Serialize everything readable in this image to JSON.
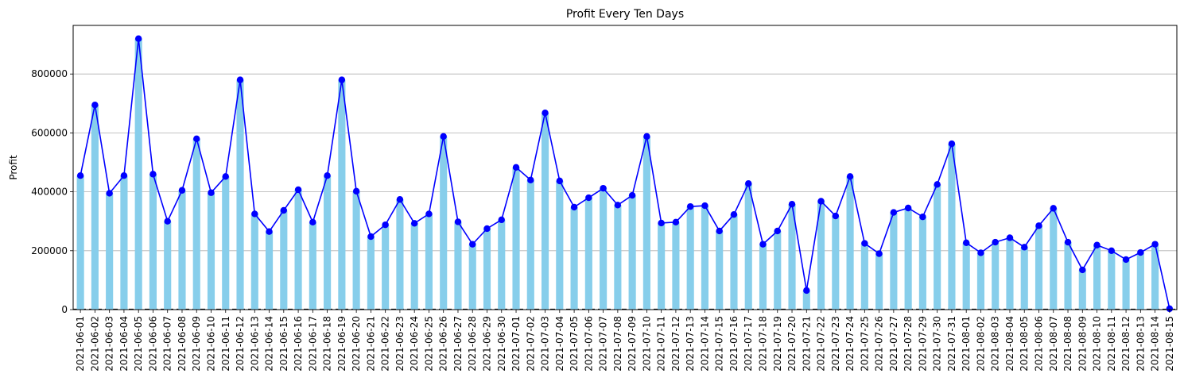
{
  "chart_data": {
    "type": "bar",
    "title": "Profit Every Ten Days",
    "xlabel": "",
    "ylabel": "Profit",
    "ylim": [
      0,
      965000
    ],
    "yticks": [
      0,
      200000,
      400000,
      600000,
      800000
    ],
    "ytick_labels": [
      "0",
      "200000",
      "400000",
      "600000",
      "800000"
    ],
    "grid": "y",
    "colors": {
      "bar": "#87ceeb",
      "line": "#0000ff",
      "grid": "#b0b0b0",
      "zero_line": "#000000"
    },
    "categories": [
      "2021-06-01",
      "2021-06-02",
      "2021-06-03",
      "2021-06-04",
      "2021-06-05",
      "2021-06-06",
      "2021-06-07",
      "2021-06-08",
      "2021-06-09",
      "2021-06-10",
      "2021-06-11",
      "2021-06-12",
      "2021-06-13",
      "2021-06-14",
      "2021-06-15",
      "2021-06-16",
      "2021-06-17",
      "2021-06-18",
      "2021-06-19",
      "2021-06-20",
      "2021-06-21",
      "2021-06-22",
      "2021-06-23",
      "2021-06-24",
      "2021-06-25",
      "2021-06-26",
      "2021-06-27",
      "2021-06-28",
      "2021-06-29",
      "2021-06-30",
      "2021-07-01",
      "2021-07-02",
      "2021-07-03",
      "2021-07-04",
      "2021-07-05",
      "2021-07-06",
      "2021-07-07",
      "2021-07-08",
      "2021-07-09",
      "2021-07-10",
      "2021-07-11",
      "2021-07-12",
      "2021-07-13",
      "2021-07-14",
      "2021-07-15",
      "2021-07-16",
      "2021-07-17",
      "2021-07-18",
      "2021-07-19",
      "2021-07-20",
      "2021-07-21",
      "2021-07-22",
      "2021-07-23",
      "2021-07-24",
      "2021-07-25",
      "2021-07-26",
      "2021-07-27",
      "2021-07-28",
      "2021-07-29",
      "2021-07-30",
      "2021-07-31",
      "2021-08-01",
      "2021-08-02",
      "2021-08-03",
      "2021-08-04",
      "2021-08-05",
      "2021-08-06",
      "2021-08-07",
      "2021-08-08",
      "2021-08-09",
      "2021-08-10",
      "2021-08-11",
      "2021-08-12",
      "2021-08-13",
      "2021-08-14",
      "2021-08-15"
    ],
    "values": [
      455000,
      695000,
      395000,
      455000,
      920000,
      460000,
      300000,
      405000,
      580000,
      397000,
      452000,
      780000,
      325000,
      265000,
      337000,
      407000,
      297000,
      455000,
      780000,
      402000,
      248000,
      288000,
      374000,
      293000,
      325000,
      588000,
      298000,
      222000,
      275000,
      305000,
      483000,
      440000,
      668000,
      437000,
      348000,
      380000,
      412000,
      355000,
      388000,
      588000,
      294000,
      297000,
      350000,
      353000,
      267000,
      323000,
      428000,
      222000,
      267000,
      358000,
      65000,
      368000,
      318000,
      452000,
      225000,
      190000,
      330000,
      345000,
      315000,
      425000,
      563000,
      227000,
      193000,
      229000,
      244000,
      212000,
      285000,
      344000,
      229000,
      135000,
      219000,
      200000,
      170000,
      194000,
      222000,
      3000
    ]
  }
}
